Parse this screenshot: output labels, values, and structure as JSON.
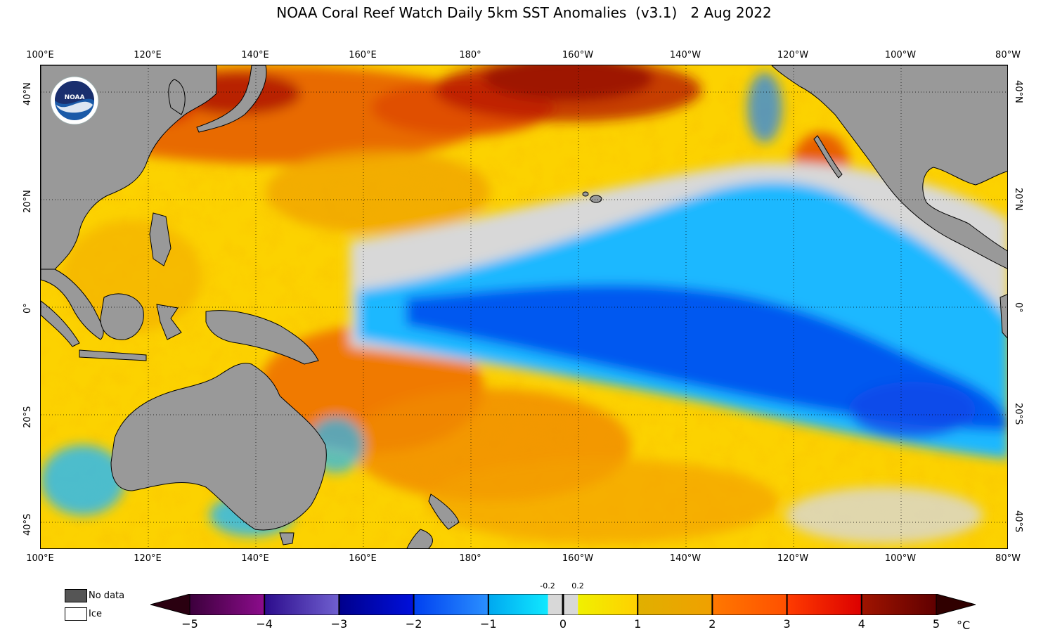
{
  "title": "NOAA Coral Reef Watch Daily 5km SST Anomalies  (v3.1)   2 Aug 2022",
  "lon_ticks": [
    "100°E",
    "120°E",
    "140°E",
    "160°E",
    "180°",
    "160°W",
    "140°W",
    "120°W",
    "100°W",
    "80°W"
  ],
  "lat_ticks_left": [
    "40°N",
    "20°N",
    "0°",
    "20°S",
    "40°S"
  ],
  "lat_ticks_right": [
    "40°N",
    "20°N",
    "0°",
    "20°S",
    "40°S"
  ],
  "legend": {
    "no_data_label": "No data",
    "no_data_color": "#555555",
    "ice_label": "Ice",
    "ice_color": "#ffffff"
  },
  "colorbar": {
    "ticks": [
      "−5",
      "−4",
      "−3",
      "−2",
      "−1",
      "0",
      "1",
      "2",
      "3",
      "4",
      "5"
    ],
    "small_ticks": [
      "-0.2",
      "0.2"
    ],
    "unit": "°C",
    "stops": [
      {
        "from": -5,
        "to": -4,
        "c1": "#3c003c",
        "c2": "#8c0c8c"
      },
      {
        "from": -4,
        "to": -3,
        "c1": "#2c0c8c",
        "c2": "#7060d0"
      },
      {
        "from": -3,
        "to": -2,
        "c1": "#00008c",
        "c2": "#0010dc"
      },
      {
        "from": -2,
        "to": -1,
        "c1": "#0040f0",
        "c2": "#2a90ff"
      },
      {
        "from": -1,
        "to": -0.2,
        "c1": "#00a8f0",
        "c2": "#10e8ff"
      },
      {
        "from": -0.2,
        "to": 0.2,
        "c1": "#d8d8d8",
        "c2": "#d8d8d8"
      },
      {
        "from": 0.2,
        "to": 1,
        "c1": "#f0f000",
        "c2": "#ffd000"
      },
      {
        "from": 1,
        "to": 2,
        "c1": "#e0b000",
        "c2": "#f0a000"
      },
      {
        "from": 2,
        "to": 3,
        "c1": "#ff7800",
        "c2": "#ff5000"
      },
      {
        "from": 3,
        "to": 4,
        "c1": "#ff3c00",
        "c2": "#dc0000"
      },
      {
        "from": 4,
        "to": 5,
        "c1": "#a01400",
        "c2": "#600000"
      }
    ],
    "under_color": "#2a0010",
    "over_color": "#300000"
  },
  "map_colors": {
    "land": "#999999",
    "near_zero": "#d8d8d8",
    "warm_base": "#fcd000",
    "warm_orange": "#f4a000",
    "warm_red": "#e85000",
    "hot": "#3a0000",
    "cool": "#18b8ff",
    "cold": "#0058f0"
  }
}
